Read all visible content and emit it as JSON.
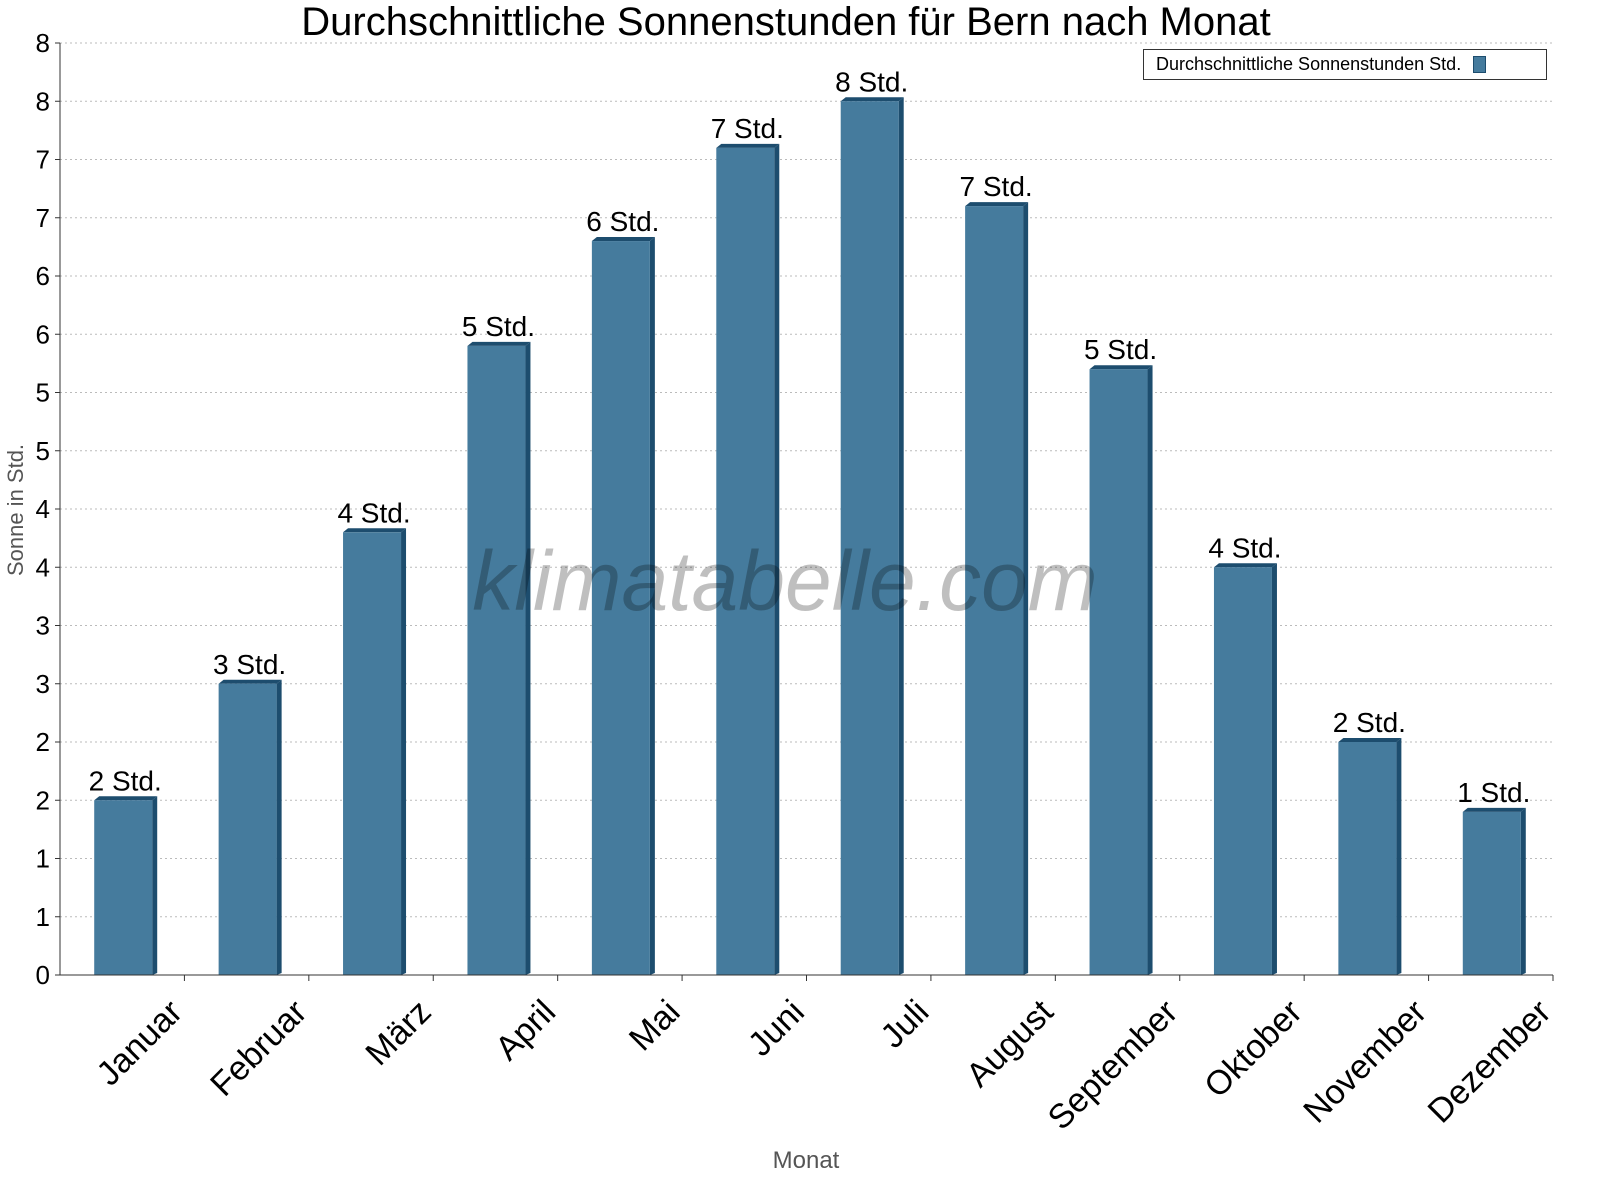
{
  "chart_data": {
    "type": "bar",
    "title": "Durchschnittliche Sonnenstunden für Bern nach Monat",
    "xlabel": "Monat",
    "ylabel": "Sonne in Std.",
    "ylim": [
      0,
      8
    ],
    "yticks": [
      0,
      0.5,
      1,
      1.5,
      2,
      2.5,
      3,
      3.5,
      4,
      4.5,
      5,
      5.5,
      6,
      6.5,
      7,
      7.5,
      8
    ],
    "ytick_labels": [
      "0",
      "1",
      "1",
      "2",
      "2",
      "3",
      "3",
      "4",
      "4",
      "5",
      "5",
      "6",
      "6",
      "7",
      "7",
      "8",
      "8"
    ],
    "categories": [
      "Januar",
      "Februar",
      "März",
      "April",
      "Mai",
      "Juni",
      "Juli",
      "August",
      "September",
      "Oktober",
      "November",
      "Dezember"
    ],
    "series": [
      {
        "name": "Durchschnittliche Sonnenstunden Std.",
        "values": [
          1.5,
          2.5,
          3.8,
          5.4,
          6.3,
          7.1,
          7.5,
          6.6,
          5.2,
          3.5,
          2.0,
          1.4
        ],
        "labels": [
          "2 Std.",
          "3 Std.",
          "4 Std.",
          "5 Std.",
          "6 Std.",
          "7 Std.",
          "8 Std.",
          "7 Std.",
          "5 Std.",
          "4 Std.",
          "2 Std.",
          "1 Std."
        ]
      }
    ],
    "grid": true,
    "legend": "top-right",
    "colors": {
      "bar": "#457b9d",
      "bar_side": "#1d4d6e"
    },
    "watermark": "klimatabelle.com"
  }
}
